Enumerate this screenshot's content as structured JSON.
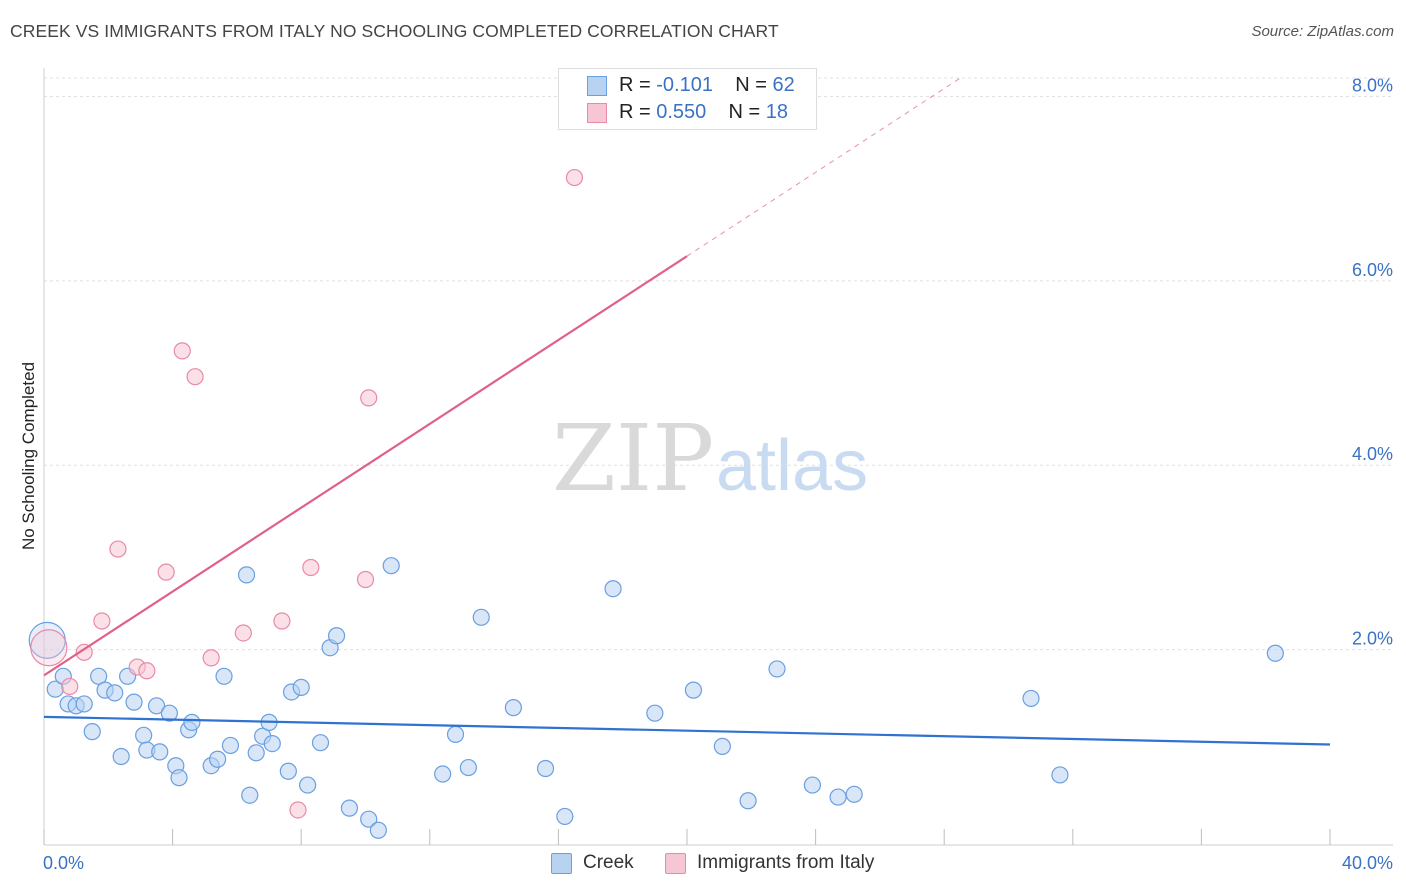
{
  "header": {
    "title": "CREEK VS IMMIGRANTS FROM ITALY NO SCHOOLING COMPLETED CORRELATION CHART",
    "source": "Source: ZipAtlas.com"
  },
  "watermark": {
    "part1": "ZIP",
    "part2": "atlas"
  },
  "legend": [
    {
      "r_label": "R =",
      "r_value": "-0.101",
      "n_label": "N =",
      "n_value": "62"
    },
    {
      "r_label": "R =",
      "r_value": "0.550",
      "n_label": "N =",
      "n_value": "18"
    }
  ],
  "colors": {
    "creek_fill": "#b8d2f2",
    "creek_stroke": "#6a9fe0",
    "creek_line": "#2f72d0",
    "italy_fill": "#f7c6d4",
    "italy_stroke": "#e88aa8",
    "italy_line": "#e0608a",
    "tick_label": "#3a72c4",
    "grid": "#e0e0e0"
  },
  "chart_data": {
    "type": "scatter",
    "title": "CREEK VS IMMIGRANTS FROM ITALY NO SCHOOLING COMPLETED CORRELATION CHART",
    "xlabel": "",
    "ylabel": "No Schooling Completed",
    "xlim": [
      0,
      40
    ],
    "ylim": [
      -0.12,
      8.2
    ],
    "x_tick_labels": [
      "0.0%",
      "40.0%"
    ],
    "y_ticks": [
      2,
      4,
      6,
      8
    ],
    "y_tick_labels": [
      "2.0%",
      "4.0%",
      "6.0%",
      "8.0%"
    ],
    "series": [
      {
        "name": "Creek",
        "R": -0.101,
        "N": 62,
        "trend": {
          "x0": 0,
          "y0": 1.27,
          "x1": 40,
          "y1": 0.97,
          "dashed_after": null
        },
        "points": [
          [
            0.1,
            2.1
          ],
          [
            0.35,
            1.57
          ],
          [
            0.6,
            1.71
          ],
          [
            0.75,
            1.41
          ],
          [
            1.0,
            1.39
          ],
          [
            1.25,
            1.41
          ],
          [
            1.5,
            1.11
          ],
          [
            1.7,
            1.71
          ],
          [
            1.9,
            1.56
          ],
          [
            2.2,
            1.53
          ],
          [
            2.4,
            0.84
          ],
          [
            2.6,
            1.71
          ],
          [
            2.8,
            1.43
          ],
          [
            3.1,
            1.07
          ],
          [
            3.2,
            0.91
          ],
          [
            3.5,
            1.39
          ],
          [
            3.6,
            0.89
          ],
          [
            3.9,
            1.31
          ],
          [
            4.1,
            0.74
          ],
          [
            4.2,
            0.61
          ],
          [
            4.5,
            1.13
          ],
          [
            4.6,
            1.21
          ],
          [
            5.2,
            0.74
          ],
          [
            5.4,
            0.81
          ],
          [
            5.6,
            1.71
          ],
          [
            5.8,
            0.96
          ],
          [
            6.3,
            2.81
          ],
          [
            6.4,
            0.42
          ],
          [
            6.6,
            0.88
          ],
          [
            6.8,
            1.06
          ],
          [
            7.0,
            1.21
          ],
          [
            7.1,
            0.98
          ],
          [
            7.6,
            0.68
          ],
          [
            7.7,
            1.54
          ],
          [
            8.0,
            1.59
          ],
          [
            8.2,
            0.53
          ],
          [
            8.6,
            0.99
          ],
          [
            8.9,
            2.02
          ],
          [
            9.1,
            2.15
          ],
          [
            9.5,
            0.28
          ],
          [
            10.1,
            0.16
          ],
          [
            10.4,
            0.04
          ],
          [
            10.8,
            2.91
          ],
          [
            12.4,
            0.65
          ],
          [
            12.8,
            1.08
          ],
          [
            13.2,
            0.72
          ],
          [
            13.6,
            2.35
          ],
          [
            14.6,
            1.37
          ],
          [
            15.6,
            0.71
          ],
          [
            16.2,
            0.19
          ],
          [
            17.7,
            2.66
          ],
          [
            19.0,
            1.31
          ],
          [
            20.2,
            1.56
          ],
          [
            21.1,
            0.95
          ],
          [
            21.9,
            0.36
          ],
          [
            22.8,
            1.79
          ],
          [
            23.9,
            0.53
          ],
          [
            24.7,
            0.4
          ],
          [
            25.2,
            0.43
          ],
          [
            30.7,
            1.47
          ],
          [
            31.6,
            0.64
          ],
          [
            38.3,
            1.96
          ]
        ]
      },
      {
        "name": "Immigrants from Italy",
        "R": 0.55,
        "N": 18,
        "trend": {
          "x0": 0,
          "y0": 1.72,
          "x1": 28.5,
          "y1": 8.2,
          "dashed_after": 20.0
        },
        "points": [
          [
            0.15,
            2.02
          ],
          [
            0.8,
            1.6
          ],
          [
            1.25,
            1.97
          ],
          [
            1.8,
            2.31
          ],
          [
            2.3,
            3.09
          ],
          [
            2.9,
            1.81
          ],
          [
            3.2,
            1.77
          ],
          [
            3.8,
            2.84
          ],
          [
            4.3,
            5.24
          ],
          [
            4.7,
            4.96
          ],
          [
            5.2,
            1.91
          ],
          [
            6.2,
            2.18
          ],
          [
            7.4,
            2.31
          ],
          [
            7.9,
            0.26
          ],
          [
            8.3,
            2.89
          ],
          [
            10.0,
            2.76
          ],
          [
            10.1,
            4.73
          ],
          [
            16.5,
            7.12
          ]
        ]
      }
    ]
  },
  "bottom_legend": [
    "Creek",
    "Immigrants from Italy"
  ]
}
